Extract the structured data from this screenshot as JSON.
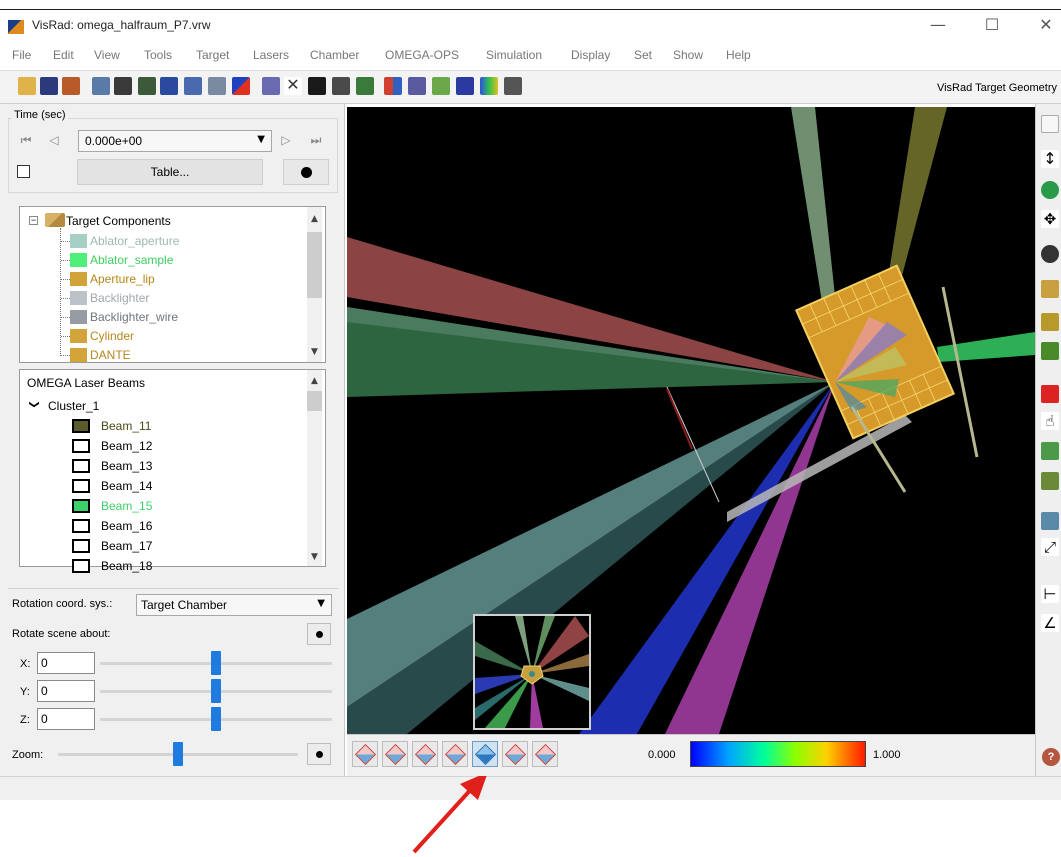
{
  "window": {
    "title": "VisRad: omega_halfraum_P7.vrw",
    "minimize": "—",
    "maximize": "☐",
    "close": "✕"
  },
  "menu": [
    "File",
    "Edit",
    "View",
    "Tools",
    "Target",
    "Lasers",
    "Chamber",
    "OMEGA-OPS",
    "Simulation",
    "Display",
    "Set",
    "Show",
    "Help"
  ],
  "toolbar": {
    "panel_label": "VisRad Target Geometry"
  },
  "time_panel": {
    "group_label": "Time (sec)",
    "value": "0.000e+00",
    "table_button": "Table..."
  },
  "target_components": {
    "root_label": "Target Components",
    "items": [
      {
        "label": "Ablator_aperture",
        "color": "#a6cfc6",
        "text_color": "#9fb8b2"
      },
      {
        "label": "Ablator_sample",
        "color": "#4ff07a",
        "text_color": "#3fcf5e"
      },
      {
        "label": "Aperture_lip",
        "color": "#d2a33a",
        "text_color": "#b7871c"
      },
      {
        "label": "Backlighter",
        "color": "#bcc3c8",
        "text_color": "#a0a7ab"
      },
      {
        "label": "Backlighter_wire",
        "color": "#959ca3",
        "text_color": "#6e7479"
      },
      {
        "label": "Cylinder",
        "color": "#d3a43a",
        "text_color": "#b7871c"
      },
      {
        "label": "DANTE",
        "color": "#d3a43a",
        "text_color": "#b7871c"
      }
    ]
  },
  "laser_beams": {
    "title": "OMEGA Laser Beams",
    "expand_icon": "❯",
    "cluster": "Cluster_1",
    "beams": [
      {
        "label": "Beam_11",
        "fill": "#5a5a2a",
        "text_color": "#4a4a1a"
      },
      {
        "label": "Beam_12",
        "fill": "#ffffff",
        "text_color": "#000000"
      },
      {
        "label": "Beam_13",
        "fill": "#ffffff",
        "text_color": "#000000"
      },
      {
        "label": "Beam_14",
        "fill": "#ffffff",
        "text_color": "#000000"
      },
      {
        "label": "Beam_15",
        "fill": "#3ed16a",
        "text_color": "#3ed16a"
      },
      {
        "label": "Beam_16",
        "fill": "#ffffff",
        "text_color": "#000000"
      },
      {
        "label": "Beam_17",
        "fill": "#ffffff",
        "text_color": "#000000"
      },
      {
        "label": "Beam_18",
        "fill": "#ffffff",
        "text_color": "#000000"
      }
    ]
  },
  "rotation": {
    "coord_label": "Rotation coord. sys.:",
    "coord_value": "Target Chamber",
    "rotate_label": "Rotate scene about:",
    "x_label": "X:",
    "x_value": "0",
    "x_position": 0.5,
    "y_label": "Y:",
    "y_value": "0",
    "y_position": 0.5,
    "z_label": "Z:",
    "z_value": "0",
    "z_position": 0.5,
    "zoom_label": "Zoom:",
    "zoom_position": 0.5
  },
  "color_scale": {
    "min": "0.000",
    "max": "1.000"
  },
  "view_buttons": {
    "count": 7,
    "active_index": 4
  },
  "help_icon": "?"
}
